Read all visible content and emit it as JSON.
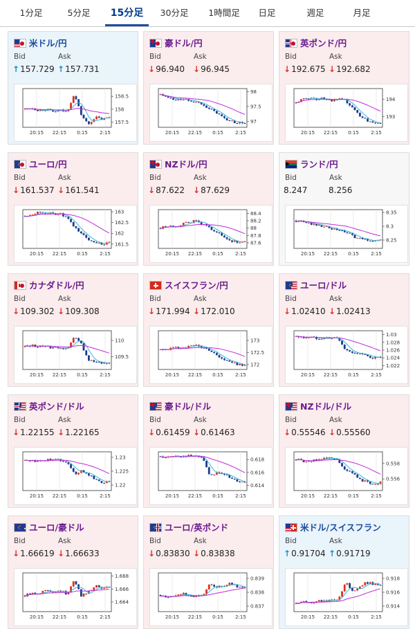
{
  "tabs": [
    "1分足",
    "5分足",
    "15分足",
    "30分足",
    "1時間足",
    "日足",
    "週足",
    "月足"
  ],
  "active_tab": "15分足",
  "bid_label": "Bid",
  "ask_label": "Ask",
  "x_ticks": [
    "20:15",
    "22:15",
    "0:15",
    "2:15"
  ],
  "colors": {
    "up": "#1a8fc4",
    "down": "#d8342c",
    "title": "#6a1b8f",
    "active_tab": "#003a8c",
    "ma_short": "#35b7d8",
    "ma_long": "#c02ad8"
  },
  "pairs": [
    {
      "name": "米ドル/円",
      "dir": "up",
      "bid": "157.729",
      "ask": "157.731",
      "flags": [
        "us",
        "jp"
      ],
      "y_ticks": [
        "158.5",
        "158",
        "157.5"
      ],
      "ylim": [
        157.3,
        158.8
      ],
      "chart_data": {
        "type": "candlestick",
        "levels": [
          158.0,
          158.05,
          157.95,
          158.0,
          157.9,
          157.95,
          157.9,
          158.6,
          157.8,
          157.4,
          157.7,
          157.6,
          157.7
        ]
      }
    },
    {
      "name": "豪ドル/円",
      "dir": "down",
      "bid": "96.940",
      "ask": "96.945",
      "flags": [
        "au",
        "jp"
      ],
      "y_ticks": [
        "98",
        "97.5",
        "97"
      ],
      "ylim": [
        96.8,
        98.1
      ],
      "chart_data": {
        "type": "candlestick",
        "levels": [
          97.9,
          97.8,
          97.7,
          97.75,
          97.7,
          97.65,
          97.6,
          97.4,
          97.3,
          97.1,
          97.0,
          96.95,
          96.94
        ]
      }
    },
    {
      "name": "英ポンド/円",
      "dir": "down",
      "bid": "192.675",
      "ask": "192.682",
      "flags": [
        "gb",
        "jp"
      ],
      "y_ticks": [
        "194",
        "193"
      ],
      "ylim": [
        192.4,
        194.6
      ],
      "chart_data": {
        "type": "candlestick",
        "levels": [
          193.8,
          194.0,
          194.1,
          194.0,
          194.05,
          193.9,
          194.0,
          193.9,
          193.5,
          193.1,
          192.8,
          192.7,
          192.68
        ]
      }
    },
    {
      "name": "ユーロ/円",
      "dir": "down",
      "bid": "161.537",
      "ask": "161.541",
      "flags": [
        "eu",
        "jp"
      ],
      "y_ticks": [
        "163",
        "162.5",
        "162",
        "161.5"
      ],
      "ylim": [
        161.3,
        163.1
      ],
      "chart_data": {
        "type": "candlestick",
        "levels": [
          162.8,
          162.9,
          163.0,
          162.95,
          162.9,
          162.9,
          162.7,
          162.3,
          162.0,
          161.7,
          161.6,
          161.5,
          161.54
        ]
      }
    },
    {
      "name": "NZドル/円",
      "dir": "down",
      "bid": "87.622",
      "ask": "87.629",
      "flags": [
        "nz",
        "jp"
      ],
      "y_ticks": [
        "88.4",
        "88.2",
        "88",
        "87.8",
        "87.6"
      ],
      "ylim": [
        87.45,
        88.5
      ],
      "chart_data": {
        "type": "candlestick",
        "levels": [
          88.0,
          88.05,
          88.05,
          88.1,
          88.15,
          88.2,
          88.1,
          88.0,
          87.9,
          87.75,
          87.65,
          87.62,
          87.62
        ]
      }
    },
    {
      "name": "ランド/円",
      "dir": "none",
      "bid": "8.247",
      "ask": "8.256",
      "flags": [
        "za"
      ],
      "y_ticks": [
        "8.35",
        "8.3",
        "8.25"
      ],
      "ylim": [
        8.22,
        8.36
      ],
      "chart_data": {
        "type": "candlestick",
        "levels": [
          8.32,
          8.315,
          8.31,
          8.305,
          8.3,
          8.29,
          8.285,
          8.28,
          8.265,
          8.255,
          8.25,
          8.248,
          8.25
        ]
      }
    },
    {
      "name": "カナダドル/円",
      "dir": "down",
      "bid": "109.302",
      "ask": "109.308",
      "flags": [
        "ca",
        "jp"
      ],
      "y_ticks": [
        "110",
        "109.5"
      ],
      "ylim": [
        109.1,
        110.3
      ],
      "chart_data": {
        "type": "candlestick",
        "levels": [
          109.8,
          109.85,
          109.8,
          109.85,
          109.75,
          109.8,
          109.7,
          110.1,
          109.9,
          109.4,
          109.35,
          109.3,
          109.3
        ]
      }
    },
    {
      "name": "スイスフラン/円",
      "dir": "down",
      "bid": "171.994",
      "ask": "172.010",
      "flags": [
        "ch"
      ],
      "y_ticks": [
        "173",
        "172.5",
        "172"
      ],
      "ylim": [
        171.8,
        173.4
      ],
      "chart_data": {
        "type": "candlestick",
        "levels": [
          172.6,
          172.65,
          172.7,
          172.7,
          172.75,
          172.8,
          172.7,
          172.6,
          172.4,
          172.2,
          172.1,
          172.0,
          172.0
        ]
      }
    },
    {
      "name": "ユーロ/ドル",
      "dir": "down",
      "bid": "1.02410",
      "ask": "1.02413",
      "flags": [
        "eu",
        "us"
      ],
      "y_ticks": [
        "1.03",
        "1.028",
        "1.026",
        "1.024",
        "1.022"
      ],
      "ylim": [
        1.021,
        1.031
      ],
      "chart_data": {
        "type": "candlestick",
        "levels": [
          1.0295,
          1.0292,
          1.0294,
          1.029,
          1.0292,
          1.0291,
          1.029,
          1.026,
          1.0255,
          1.025,
          1.0245,
          1.024,
          1.0241
        ]
      }
    },
    {
      "name": "英ポンド/ドル",
      "dir": "down",
      "bid": "1.22155",
      "ask": "1.22165",
      "flags": [
        "gb",
        "us"
      ],
      "y_ticks": [
        "1.23",
        "1.225",
        "1.22"
      ],
      "ylim": [
        1.218,
        1.232
      ],
      "chart_data": {
        "type": "candlestick",
        "levels": [
          1.229,
          1.229,
          1.2285,
          1.229,
          1.2295,
          1.229,
          1.2285,
          1.224,
          1.225,
          1.224,
          1.222,
          1.221,
          1.2215
        ]
      }
    },
    {
      "name": "豪ドル/ドル",
      "dir": "down",
      "bid": "0.61459",
      "ask": "0.61463",
      "flags": [
        "au",
        "us"
      ],
      "y_ticks": [
        "0.618",
        "0.616",
        "0.614"
      ],
      "ylim": [
        0.6132,
        0.6192
      ],
      "chart_data": {
        "type": "candlestick",
        "levels": [
          0.6185,
          0.6183,
          0.6186,
          0.6185,
          0.6186,
          0.6185,
          0.6184,
          0.6155,
          0.616,
          0.6158,
          0.615,
          0.6147,
          0.6146
        ]
      }
    },
    {
      "name": "NZドル/ドル",
      "dir": "down",
      "bid": "0.55546",
      "ask": "0.55560",
      "flags": [
        "nz",
        "us"
      ],
      "y_ticks": [
        "0.558",
        "0.556"
      ],
      "ylim": [
        0.5545,
        0.5595
      ],
      "chart_data": {
        "type": "candlestick",
        "levels": [
          0.5585,
          0.5583,
          0.5582,
          0.5585,
          0.5587,
          0.5586,
          0.5584,
          0.557,
          0.5568,
          0.556,
          0.5556,
          0.5554,
          0.5555
        ]
      }
    },
    {
      "name": "ユーロ/豪ドル",
      "dir": "down",
      "bid": "1.66619",
      "ask": "1.66633",
      "flags": [
        "eu",
        "au"
      ],
      "y_ticks": [
        "1.668",
        "1.666",
        "1.664"
      ],
      "ylim": [
        1.6625,
        1.6685
      ],
      "chart_data": {
        "type": "candlestick",
        "levels": [
          1.665,
          1.6655,
          1.6652,
          1.666,
          1.6655,
          1.6658,
          1.6652,
          1.6675,
          1.665,
          1.6655,
          1.6665,
          1.6662,
          1.6662
        ]
      }
    },
    {
      "name": "ユーロ/英ポンド",
      "dir": "down",
      "bid": "0.83830",
      "ask": "0.83838",
      "flags": [
        "eu",
        "gb"
      ],
      "y_ticks": [
        "0.839",
        "0.838",
        "0.837"
      ],
      "ylim": [
        0.8366,
        0.8394
      ],
      "chart_data": {
        "type": "candlestick",
        "levels": [
          0.8378,
          0.8376,
          0.8378,
          0.8379,
          0.8378,
          0.8377,
          0.8378,
          0.8386,
          0.8383,
          0.8385,
          0.8387,
          0.8384,
          0.8383
        ]
      }
    },
    {
      "name": "米ドル/スイスフラン",
      "dir": "up",
      "bid": "0.91704",
      "ask": "0.91719",
      "flags": [
        "us",
        "ch"
      ],
      "y_ticks": [
        "0.918",
        "0.916",
        "0.914"
      ],
      "ylim": [
        0.9132,
        0.9188
      ],
      "chart_data": {
        "type": "candlestick",
        "levels": [
          0.9143,
          0.9146,
          0.9145,
          0.9148,
          0.9147,
          0.9149,
          0.9147,
          0.9175,
          0.9162,
          0.9168,
          0.9174,
          0.9172,
          0.917
        ]
      }
    }
  ]
}
